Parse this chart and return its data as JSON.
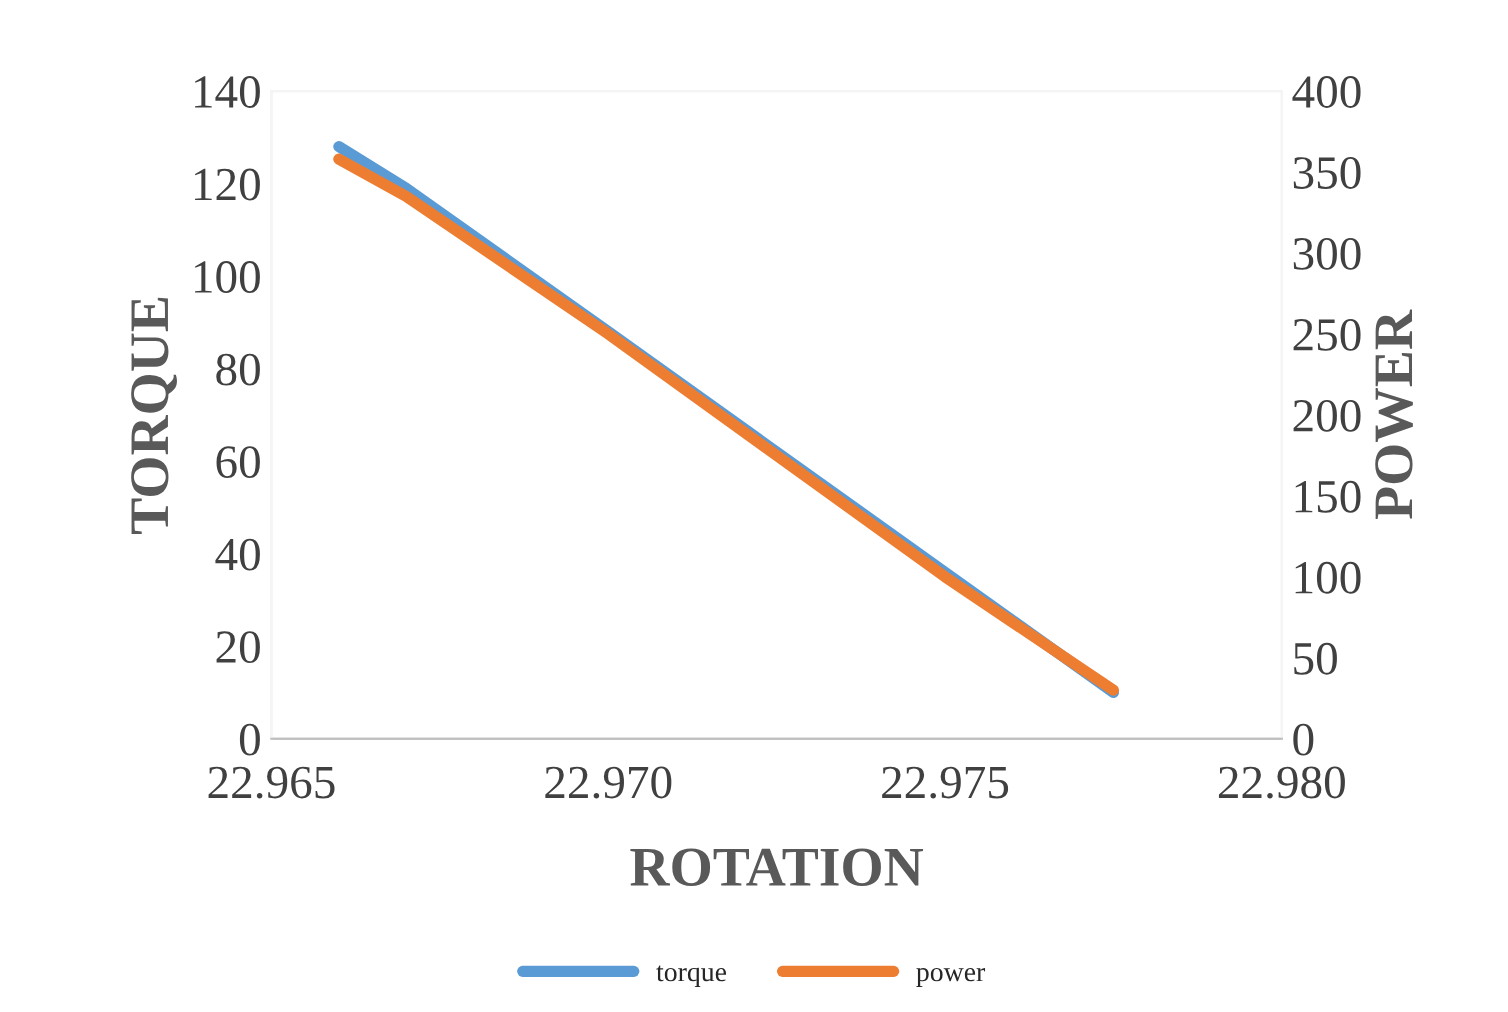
{
  "chart_data": {
    "type": "line",
    "xlabel": "ROTATION",
    "ylabel": "TORQUE",
    "y2label": "POWER",
    "xlim": [
      22.965,
      22.98
    ],
    "xticks": [
      22.965,
      {
        "value": 22.97,
        "label": "22.970"
      },
      22.975,
      {
        "value": 22.98,
        "label": "22.980"
      }
    ],
    "ylim": [
      0,
      140
    ],
    "yticks": [
      0,
      20,
      40,
      60,
      80,
      100,
      120,
      140
    ],
    "y2lim": [
      0,
      400
    ],
    "y2ticks": [
      0,
      50,
      100,
      150,
      200,
      250,
      300,
      350,
      400
    ],
    "grid": false,
    "legend": "bottom",
    "marker": "none",
    "line_style": "solid",
    "series": [
      {
        "name": "torque",
        "color": "#5b9bd5",
        "x": [
          22.966,
          22.967,
          22.97,
          22.975,
          22.9775
        ],
        "values": [
          128,
          119,
          88,
          36,
          10
        ]
      },
      {
        "name": "power",
        "color": "#ed7d31",
        "axis": "y2",
        "x": [
          22.966,
          22.967,
          22.97,
          22.975,
          22.9775
        ],
        "values": [
          358,
          335,
          250,
          100,
          30
        ]
      }
    ]
  }
}
